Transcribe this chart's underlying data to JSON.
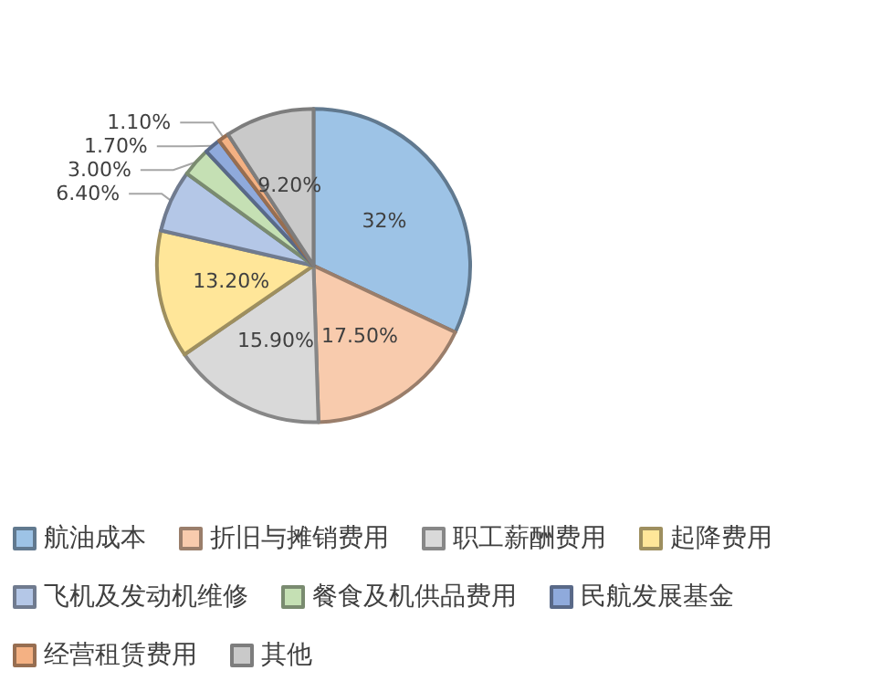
{
  "chart_data": {
    "type": "pie",
    "categories": [
      "航油成本",
      "折旧与摊销费用",
      "职工薪酬费用",
      "起降费用",
      "飞机及发动机维修",
      "餐食及机供品费用",
      "民航发展基金",
      "经营租赁费用",
      "其他"
    ],
    "values": [
      32,
      17.5,
      15.9,
      13.2,
      6.4,
      3.0,
      1.7,
      1.1,
      9.2
    ],
    "value_labels": [
      "32%",
      "17.50%",
      "15.90%",
      "13.20%",
      "6.40%",
      "3.00%",
      "1.70%",
      "1.10%",
      "9.20%"
    ],
    "colors": [
      "#9dc3e6",
      "#f8cbad",
      "#d9d9d9",
      "#ffe699",
      "#b4c7e7",
      "#c5e0b4",
      "#8faadc",
      "#f4b183",
      "#c9c9c9"
    ],
    "legend": "bottom"
  }
}
